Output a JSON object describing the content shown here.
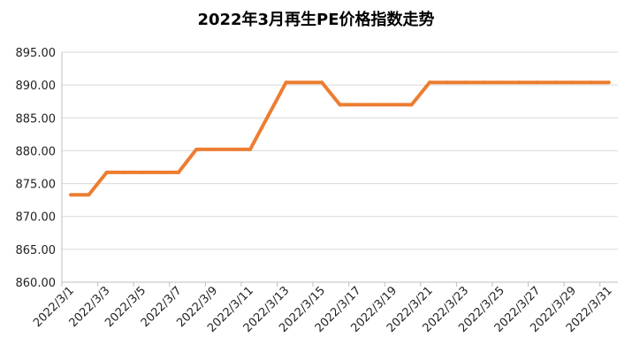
{
  "chart_data": {
    "type": "line",
    "title": "2022年3月再生PE价格指数走势",
    "xlabel": "",
    "ylabel": "",
    "ylim": [
      860,
      895
    ],
    "yticks": [
      "860.00",
      "865.00",
      "870.00",
      "875.00",
      "880.00",
      "885.00",
      "890.00",
      "895.00"
    ],
    "grid": true,
    "legend": "none",
    "line_color": "#ED7D31",
    "x": [
      "2022/3/1",
      "2022/3/2",
      "2022/3/3",
      "2022/3/4",
      "2022/3/5",
      "2022/3/6",
      "2022/3/7",
      "2022/3/8",
      "2022/3/9",
      "2022/3/10",
      "2022/3/11",
      "2022/3/12",
      "2022/3/13",
      "2022/3/14",
      "2022/3/15",
      "2022/3/16",
      "2022/3/17",
      "2022/3/18",
      "2022/3/19",
      "2022/3/20",
      "2022/3/21",
      "2022/3/22",
      "2022/3/23",
      "2022/3/24",
      "2022/3/25",
      "2022/3/26",
      "2022/3/27",
      "2022/3/28",
      "2022/3/29",
      "2022/3/30",
      "2022/3/31"
    ],
    "xtick_labels": [
      "2022/3/1",
      "2022/3/3",
      "2022/3/5",
      "2022/3/7",
      "2022/3/9",
      "2022/3/11",
      "2022/3/13",
      "2022/3/15",
      "2022/3/17",
      "2022/3/19",
      "2022/3/21",
      "2022/3/23",
      "2022/3/25",
      "2022/3/27",
      "2022/3/29",
      "2022/3/31"
    ],
    "series": [
      {
        "values": [
          873.3,
          873.3,
          876.7,
          876.7,
          876.7,
          876.7,
          876.7,
          880.2,
          880.2,
          880.2,
          880.2,
          885.3,
          890.4,
          890.4,
          890.4,
          887.0,
          887.0,
          887.0,
          887.0,
          887.0,
          890.4,
          890.4,
          890.4,
          890.4,
          890.4,
          890.4,
          890.4,
          890.4,
          890.4,
          890.4,
          890.4
        ]
      }
    ]
  }
}
